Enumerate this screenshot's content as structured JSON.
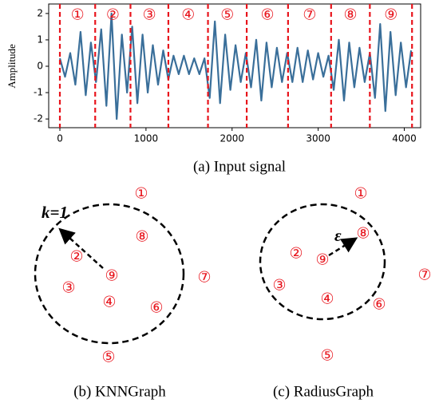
{
  "chart_data": {
    "type": "line",
    "y_label": "Amplitude",
    "caption": "(a) Input signal",
    "color": "#3a6f9a",
    "x": [
      0,
      60,
      120,
      180,
      240,
      300,
      360,
      420,
      480,
      540,
      600,
      660,
      720,
      780,
      840,
      900,
      960,
      1020,
      1080,
      1140,
      1200,
      1260,
      1320,
      1380,
      1440,
      1500,
      1560,
      1620,
      1680,
      1740,
      1800,
      1860,
      1920,
      1980,
      2040,
      2100,
      2160,
      2220,
      2280,
      2340,
      2400,
      2460,
      2520,
      2580,
      2640,
      2700,
      2760,
      2820,
      2880,
      2940,
      3000,
      3060,
      3120,
      3180,
      3240,
      3300,
      3360,
      3420,
      3480,
      3540,
      3600,
      3660,
      3720,
      3780,
      3840,
      3900,
      3960,
      4020,
      4080
    ],
    "values": [
      0.3,
      -0.4,
      0.5,
      -0.7,
      1.3,
      -1.1,
      0.9,
      -0.6,
      1.4,
      -1.5,
      2.0,
      -2.0,
      1.2,
      -1.0,
      1.5,
      -1.4,
      1.2,
      -1.0,
      0.8,
      -0.7,
      0.6,
      -0.5,
      0.4,
      -0.3,
      0.4,
      -0.3,
      0.3,
      -0.3,
      0.3,
      -1.2,
      1.7,
      -1.4,
      1.2,
      -0.9,
      0.8,
      -0.6,
      0.5,
      -0.8,
      1.0,
      -1.3,
      0.9,
      -0.8,
      0.7,
      -0.6,
      0.5,
      -0.6,
      0.7,
      -0.6,
      0.6,
      -0.5,
      0.5,
      -0.4,
      0.4,
      -0.9,
      1.0,
      -1.3,
      0.9,
      -0.8,
      0.7,
      -0.6,
      0.5,
      -1.2,
      1.6,
      -1.7,
      1.3,
      -1.1,
      0.9,
      -0.8,
      0.6
    ],
    "boundaries": [
      0,
      410,
      820,
      1260,
      1720,
      2170,
      2650,
      3150,
      3600,
      4090
    ],
    "segment_labels": [
      "①",
      "②",
      "③",
      "④",
      "⑤",
      "⑥",
      "⑦",
      "⑧",
      "⑨"
    ],
    "xlim": [
      -130,
      4190
    ],
    "xticks": [
      0,
      1000,
      2000,
      3000,
      4000
    ],
    "ylim": [
      -2.33,
      2.36
    ],
    "yticks": [
      -2,
      -1,
      0,
      1,
      2
    ]
  },
  "knn_graph": {
    "caption": "(b) KNNGraph",
    "parameter": "k=1",
    "nodes": [
      "①",
      "⑧",
      "②",
      "⑨",
      "③",
      "④",
      "⑥",
      "⑦",
      "⑤"
    ]
  },
  "radius_graph": {
    "caption": "(c) RadiusGraph",
    "parameter": "ε",
    "nodes": [
      "①",
      "⑧",
      "②",
      "⑨",
      "③",
      "④",
      "⑥",
      "⑦",
      "⑤"
    ]
  }
}
